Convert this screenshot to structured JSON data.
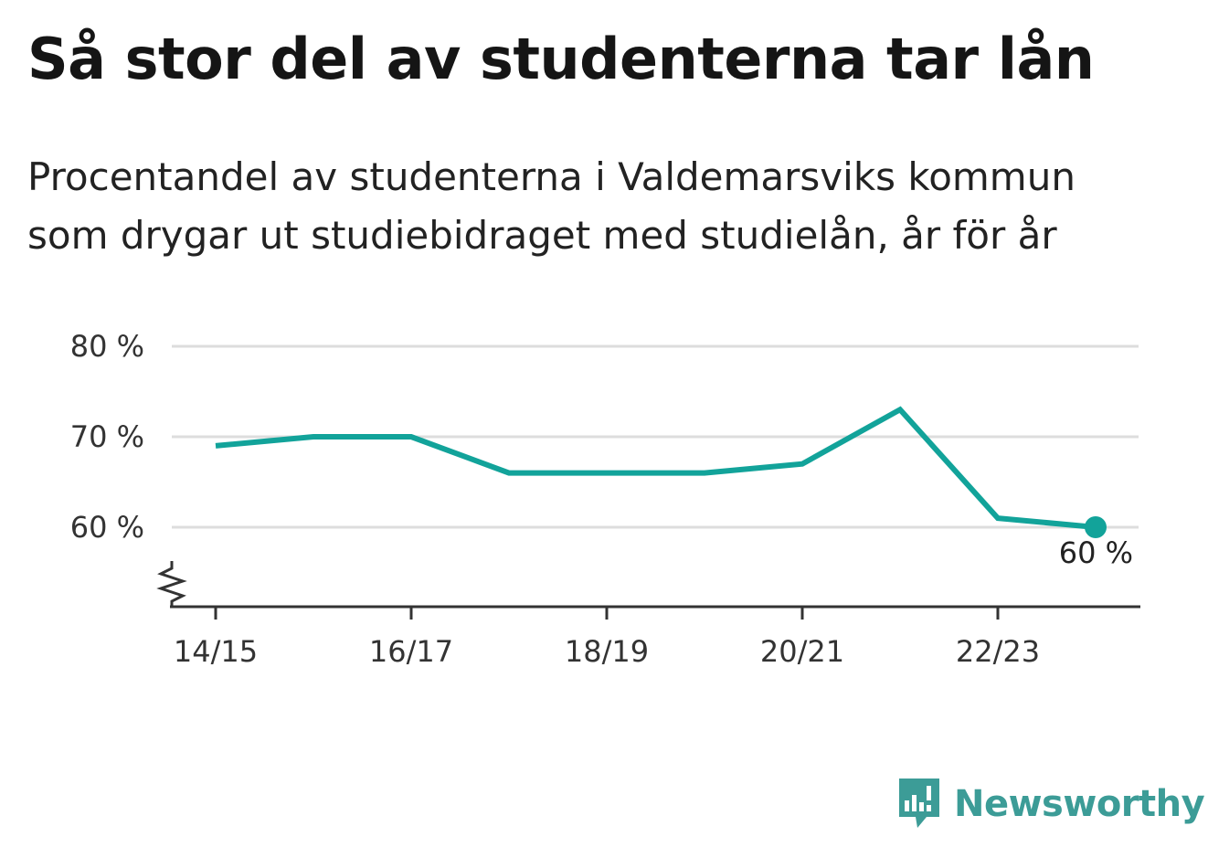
{
  "header": {
    "title": "Så stor del av studenterna tar lån",
    "subtitle": "Procentandel av studenterna i Valdemarsviks kommun som drygar ut studiebidraget med studielån, år för år"
  },
  "colors": {
    "line": "#12a39a",
    "grid": "#dddddd",
    "axis": "#333333",
    "brand": "#3c9c97"
  },
  "chart_data": {
    "type": "line",
    "title": "Så stor del av studenterna tar lån",
    "subtitle": "Procentandel av studenterna i Valdemarsviks kommun som drygar ut studiebidraget med studielån, år för år",
    "xlabel": "",
    "ylabel": "",
    "x": [
      "14/15",
      "15/16",
      "16/17",
      "17/18",
      "18/19",
      "19/20",
      "20/21",
      "21/22",
      "22/23",
      "23/24"
    ],
    "x_tick_labels": [
      "14/15",
      "16/17",
      "18/19",
      "20/21",
      "22/23"
    ],
    "series": [
      {
        "values": [
          69,
          70,
          70,
          66,
          66,
          66,
          67,
          73,
          61,
          60
        ]
      }
    ],
    "y_ticks": [
      60,
      70,
      80
    ],
    "y_tick_labels": [
      "60 %",
      "70 %",
      "80 %"
    ],
    "ylim": [
      51,
      80
    ],
    "y_axis_break": true,
    "grid": true,
    "end_label": "60 %"
  },
  "branding": {
    "logo_text": "Newsworthy",
    "logo_icon": "newsworthy-bar-chart-icon"
  }
}
